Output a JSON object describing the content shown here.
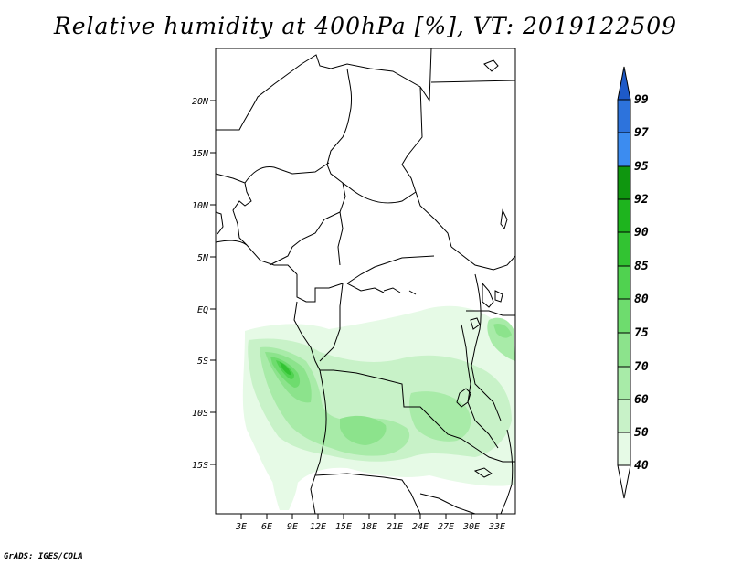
{
  "title": "Relative humidity at 400hPa [%], VT: 2019122509",
  "credit": "GrADS: IGES/COLA",
  "map": {
    "lat_ticks": [
      "20N",
      "15N",
      "10N",
      "5N",
      "EQ",
      "5S",
      "10S",
      "15S"
    ],
    "lon_ticks": [
      "3E",
      "6E",
      "9E",
      "12E",
      "15E",
      "18E",
      "21E",
      "24E",
      "27E",
      "30E",
      "33E"
    ]
  },
  "colorbar": {
    "levels": [
      "40",
      "50",
      "60",
      "70",
      "75",
      "80",
      "85",
      "90",
      "92",
      "95",
      "97",
      "99"
    ],
    "colors": [
      "#e6fae6",
      "#c8f2c8",
      "#a8eba8",
      "#8ce38c",
      "#6edc6e",
      "#50d250",
      "#32c332",
      "#1eb41e",
      "#0f960f",
      "#3c8cf0",
      "#2d73dc",
      "#1e5ac8"
    ],
    "lower_extension_color": "#ffffff",
    "upper_extension_color": "#1e5ac8"
  }
}
